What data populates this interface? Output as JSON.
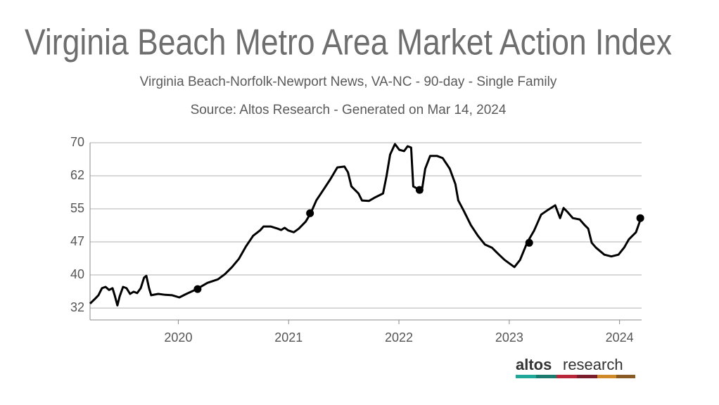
{
  "chart_data": {
    "type": "line",
    "title": "Virginia Beach Metro Area Market Action Index",
    "subtitle": "Virginia Beach-Norfolk-Newport News, VA-NC - 90-day - Single Family",
    "source": "Source: Altos Research - Generated on Mar 14, 2024",
    "color": "#000000",
    "grid": true,
    "xlim": [
      2019.2,
      2024.2
    ],
    "xticks": [
      2020,
      2021,
      2022,
      2023,
      2024
    ],
    "ylim": [
      29.8,
      70
    ],
    "yticks": [
      {
        "value": 32.5,
        "label": "32"
      },
      40,
      {
        "value": 47.5,
        "label": "47"
      },
      55,
      {
        "value": 62.5,
        "label": "62"
      },
      70
    ],
    "x": [
      2019.2,
      2019.245,
      2019.276,
      2019.308,
      2019.34,
      2019.372,
      2019.404,
      2019.423,
      2019.448,
      2019.468,
      2019.499,
      2019.531,
      2019.563,
      2019.595,
      2019.627,
      2019.659,
      2019.69,
      2019.71,
      2019.735,
      2019.754,
      2019.818,
      2019.882,
      2019.945,
      2020.009,
      2020.073,
      2020.168,
      2020.264,
      2020.359,
      2020.423,
      2020.487,
      2020.55,
      2020.614,
      2020.678,
      2020.741,
      2020.773,
      2020.837,
      2020.901,
      2020.932,
      2020.964,
      2020.996,
      2021.047,
      2021.092,
      2021.155,
      2021.2,
      2021.251,
      2021.315,
      2021.378,
      2021.442,
      2021.506,
      2021.538,
      2021.569,
      2021.633,
      2021.665,
      2021.729,
      2021.792,
      2021.856,
      2021.888,
      2021.92,
      2021.964,
      2022.003,
      2022.047,
      2022.079,
      2022.111,
      2022.13,
      2022.187,
      2022.206,
      2022.238,
      2022.283,
      2022.346,
      2022.397,
      2022.461,
      2022.512,
      2022.538,
      2022.589,
      2022.652,
      2022.716,
      2022.78,
      2022.843,
      2022.907,
      2022.958,
      2023.003,
      2023.047,
      2023.098,
      2023.162,
      2023.226,
      2023.289,
      2023.353,
      2023.417,
      2023.461,
      2023.493,
      2023.531,
      2023.576,
      2023.639,
      2023.684,
      2023.716,
      2023.748,
      2023.786,
      2023.862,
      2023.926,
      2023.99,
      2024.041,
      2024.085,
      2024.149,
      2024.194
    ],
    "values": [
      33.5,
      34.6,
      35.4,
      37.0,
      37.3,
      36.6,
      37.0,
      35.4,
      33.1,
      35.1,
      37.3,
      37.0,
      35.7,
      36.2,
      35.9,
      37.0,
      39.4,
      39.8,
      37.0,
      35.4,
      35.7,
      35.5,
      35.4,
      34.9,
      35.7,
      36.8,
      38.2,
      39.0,
      40.2,
      41.8,
      43.7,
      46.5,
      48.9,
      50.1,
      51.0,
      51.0,
      50.5,
      50.2,
      50.7,
      50.1,
      49.7,
      50.5,
      52.1,
      54.0,
      56.9,
      59.3,
      61.7,
      64.4,
      64.6,
      63.3,
      60.1,
      58.5,
      56.9,
      56.8,
      57.7,
      58.5,
      62.5,
      67.3,
      69.7,
      68.4,
      68.1,
      69.2,
      68.9,
      60.1,
      59.3,
      58.8,
      64.1,
      67.0,
      67.0,
      66.5,
      64.1,
      60.6,
      56.9,
      54.5,
      51.3,
      48.9,
      46.9,
      46.2,
      44.6,
      43.4,
      42.6,
      41.8,
      43.4,
      47.3,
      50.1,
      53.7,
      54.8,
      55.8,
      52.9,
      55.2,
      54.2,
      52.9,
      52.6,
      51.3,
      50.5,
      47.3,
      46.2,
      44.6,
      44.2,
      44.6,
      46.2,
      48.1,
      49.7,
      52.9
    ],
    "markers": {
      "x": [
        2020.175,
        2021.194,
        2022.187,
        2023.181,
        2024.188
      ],
      "values": [
        36.8,
        54.0,
        59.3,
        47.3,
        52.9
      ]
    },
    "logo": {
      "bold": "altos",
      "text": "research"
    }
  }
}
